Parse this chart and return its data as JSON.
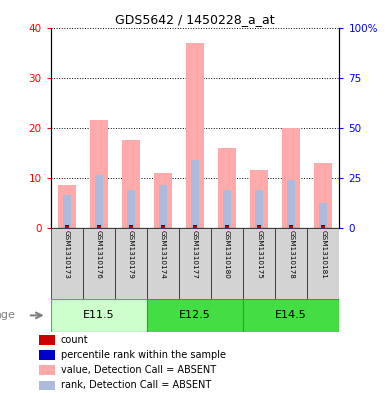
{
  "title": "GDS5642 / 1450228_a_at",
  "samples": [
    "GSM1310173",
    "GSM1310176",
    "GSM1310179",
    "GSM1310174",
    "GSM1310177",
    "GSM1310180",
    "GSM1310175",
    "GSM1310178",
    "GSM1310181"
  ],
  "pink_bar_values": [
    8.5,
    21.5,
    17.5,
    11.0,
    37.0,
    16.0,
    11.5,
    20.0,
    13.0
  ],
  "blue_bar_values": [
    6.5,
    10.5,
    7.5,
    8.5,
    13.5,
    7.5,
    7.5,
    9.5,
    5.0
  ],
  "red_bar_values": [
    0.4,
    0.4,
    0.4,
    0.4,
    0.4,
    0.4,
    0.4,
    0.4,
    0.4
  ],
  "dark_blue_bar_values": [
    0.25,
    0.25,
    0.25,
    0.25,
    0.25,
    0.25,
    0.25,
    0.25,
    0.25
  ],
  "ylim_left": [
    0,
    40
  ],
  "ylim_right": [
    0,
    100
  ],
  "yticks_left": [
    0,
    10,
    20,
    30,
    40
  ],
  "ytick_labels_left": [
    "0",
    "10",
    "20",
    "30",
    "40"
  ],
  "yticks_right": [
    0,
    25,
    50,
    75,
    100
  ],
  "ytick_labels_right": [
    "0",
    "25",
    "50",
    "75",
    "100%"
  ],
  "age_label": "age",
  "legend_items": [
    {
      "color": "#cc0000",
      "label": "count"
    },
    {
      "color": "#0000cc",
      "label": "percentile rank within the sample"
    },
    {
      "color": "#ffaaaa",
      "label": "value, Detection Call = ABSENT"
    },
    {
      "color": "#aabbdd",
      "label": "rank, Detection Call = ABSENT"
    }
  ],
  "pink_color": "#ffaaaa",
  "blue_color": "#aabbdd",
  "bar_width": 0.55,
  "blue_bar_width": 0.25,
  "red_bar_width": 0.12,
  "group_defs": [
    {
      "label": "E11.5",
      "start": 0,
      "end": 2,
      "facecolor": "#ccffcc",
      "edgecolor": "#44bb44"
    },
    {
      "label": "E12.5",
      "start": 3,
      "end": 5,
      "facecolor": "#44dd44",
      "edgecolor": "#22aa22"
    },
    {
      "label": "E14.5",
      "start": 6,
      "end": 8,
      "facecolor": "#44dd44",
      "edgecolor": "#22aa22"
    }
  ]
}
